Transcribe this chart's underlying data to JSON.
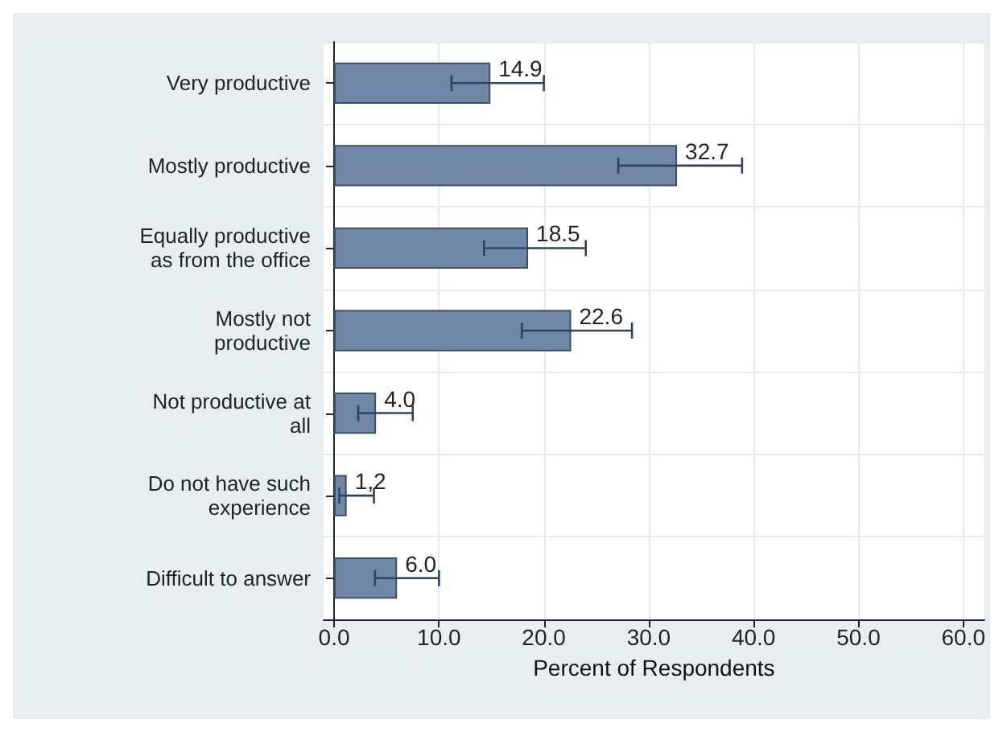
{
  "chart_data": {
    "type": "bar",
    "orientation": "horizontal",
    "xlabel": "Percent of Respondents",
    "categories": [
      "Very productive",
      "Mostly productive",
      "Equally productive\nas from the office",
      "Mostly not\nproductive",
      "Not productive at\nall",
      "Do not have such\nexperience",
      "Difficult to answer"
    ],
    "values": [
      14.9,
      32.7,
      18.5,
      22.6,
      4.0,
      1.2,
      6.0
    ],
    "value_labels": [
      "14.9",
      "32.7",
      "18.5",
      "22.6",
      "4.0",
      "1,2",
      "6.0"
    ],
    "errors": [
      [
        11.2,
        20.0
      ],
      [
        27.1,
        38.9
      ],
      [
        14.3,
        24.0
      ],
      [
        17.9,
        28.4
      ],
      [
        2.3,
        7.5
      ],
      [
        0.5,
        3.8
      ],
      [
        3.9,
        10.0
      ]
    ],
    "color": "#6f88a8",
    "xlim": [
      -1,
      62
    ],
    "xticks": [
      {
        "value": 0,
        "label": "0.0"
      },
      {
        "value": 10,
        "label": "10.0"
      },
      {
        "value": 20,
        "label": "20.0"
      },
      {
        "value": 30,
        "label": "30.0"
      },
      {
        "value": 40,
        "label": "40.0"
      },
      {
        "value": 50,
        "label": "50.0"
      },
      {
        "value": 60,
        "label": "60.0"
      }
    ],
    "grid": true
  }
}
